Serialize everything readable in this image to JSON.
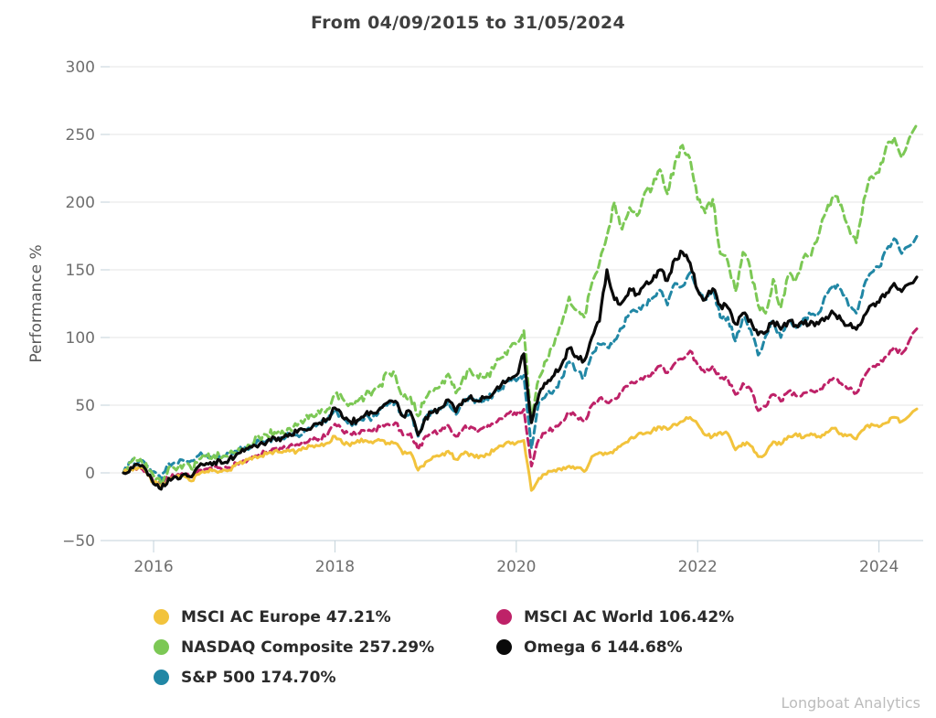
{
  "title": "From 04/09/2015 to 31/05/2024",
  "watermark": "Longboat Analytics",
  "legend": {
    "items": [
      {
        "label": "MSCI AC Europe 47.21%",
        "color": "#F2C33C"
      },
      {
        "label": "NASDAQ Composite 257.29%",
        "color": "#7CC855"
      },
      {
        "label": "S&P 500 174.70%",
        "color": "#2187A5"
      },
      {
        "label": "MSCI AC World 106.42%",
        "color": "#BE2268"
      },
      {
        "label": "Omega 6 144.68%",
        "color": "#0A0A0A"
      }
    ]
  },
  "chart_data": {
    "type": "line",
    "title": "From 04/09/2015 to 31/05/2024",
    "xlabel": "",
    "ylabel": "Performance %",
    "ylim": [
      -50,
      300
    ],
    "xlim": [
      2015.65,
      2024.45
    ],
    "y_ticks": [
      300,
      250,
      200,
      150,
      100,
      50,
      0,
      -50
    ],
    "x_ticks": [
      2016,
      2018,
      2020,
      2022,
      2024
    ],
    "grid": "horizontal",
    "legend_position": "bottom",
    "x_unit": "decimal_year_monthly_samples",
    "x": [
      2015.667,
      2015.75,
      2015.833,
      2015.917,
      2016,
      2016.083,
      2016.167,
      2016.25,
      2016.333,
      2016.417,
      2016.5,
      2016.583,
      2016.667,
      2016.75,
      2016.833,
      2016.917,
      2017,
      2017.083,
      2017.167,
      2017.25,
      2017.333,
      2017.417,
      2017.5,
      2017.583,
      2017.667,
      2017.75,
      2017.833,
      2017.917,
      2018,
      2018.083,
      2018.167,
      2018.25,
      2018.333,
      2018.417,
      2018.5,
      2018.583,
      2018.667,
      2018.75,
      2018.833,
      2018.917,
      2019,
      2019.083,
      2019.167,
      2019.25,
      2019.333,
      2019.417,
      2019.5,
      2019.583,
      2019.667,
      2019.75,
      2019.833,
      2019.917,
      2020,
      2020.083,
      2020.167,
      2020.25,
      2020.333,
      2020.417,
      2020.5,
      2020.583,
      2020.667,
      2020.75,
      2020.833,
      2020.917,
      2021,
      2021.083,
      2021.167,
      2021.25,
      2021.333,
      2021.417,
      2021.5,
      2021.583,
      2021.667,
      2021.75,
      2021.833,
      2021.917,
      2022,
      2022.083,
      2022.167,
      2022.25,
      2022.333,
      2022.417,
      2022.5,
      2022.583,
      2022.667,
      2022.75,
      2022.833,
      2022.917,
      2023,
      2023.083,
      2023.167,
      2023.25,
      2023.333,
      2023.417,
      2023.5,
      2023.583,
      2023.667,
      2023.75,
      2023.833,
      2023.917,
      2024,
      2024.083,
      2024.167,
      2024.25,
      2024.417
    ],
    "series": [
      {
        "name": "MSCI AC Europe",
        "final_pct": 47.21,
        "color": "#F2C33C",
        "dash": false,
        "jitter": 1.6,
        "values": [
          0,
          3,
          4,
          1,
          -7,
          -10,
          -4,
          -3,
          -2,
          -6,
          -1,
          1,
          2,
          1,
          2,
          7,
          8,
          10,
          12,
          14,
          16,
          15,
          16,
          16,
          18,
          20,
          20,
          22,
          27,
          22,
          20,
          24,
          24,
          22,
          24,
          22,
          22,
          14,
          15,
          2,
          8,
          12,
          13,
          16,
          10,
          14,
          14,
          11,
          14,
          16,
          20,
          23,
          22,
          24,
          -13,
          -4,
          -1,
          2,
          2,
          5,
          4,
          1,
          12,
          15,
          14,
          17,
          21,
          25,
          28,
          29,
          31,
          34,
          32,
          36,
          38,
          41,
          36,
          28,
          27,
          30,
          29,
          17,
          22,
          20,
          12,
          14,
          23,
          21,
          27,
          29,
          26,
          29,
          27,
          30,
          33,
          29,
          28,
          25,
          32,
          36,
          34,
          37,
          41,
          38,
          47.21
        ]
      },
      {
        "name": "NASDAQ Composite",
        "final_pct": 257.29,
        "color": "#7CC855",
        "dash": true,
        "jitter": 3.2,
        "values": [
          0,
          8,
          9,
          7,
          -2,
          -9,
          4,
          2,
          6,
          3,
          10,
          11,
          13,
          11,
          14,
          15,
          18,
          22,
          26,
          28,
          30,
          31,
          33,
          35,
          39,
          42,
          44,
          47,
          58,
          55,
          51,
          53,
          57,
          60,
          65,
          73,
          72,
          56,
          56,
          42,
          55,
          60,
          65,
          73,
          59,
          71,
          75,
          70,
          71,
          77,
          85,
          92,
          95,
          105,
          40,
          70,
          83,
          95,
          110,
          130,
          120,
          115,
          140,
          155,
          175,
          200,
          180,
          196,
          190,
          207,
          211,
          224,
          206,
          229,
          242,
          232,
          202,
          192,
          202,
          162,
          156,
          134,
          163,
          150,
          124,
          118,
          143,
          122,
          146,
          143,
          159,
          160,
          175,
          193,
          205,
          198,
          181,
          170,
          202,
          219,
          222,
          242,
          248,
          233,
          257.29
        ]
      },
      {
        "name": "S&P 500",
        "final_pct": 174.7,
        "color": "#2187A5",
        "dash": true,
        "jitter": 2.4,
        "values": [
          0,
          8,
          8,
          6,
          1,
          -5,
          7,
          7,
          9,
          9,
          13,
          13,
          13,
          11,
          14,
          16,
          18,
          21,
          23,
          24,
          25,
          26,
          28,
          28,
          31,
          34,
          37,
          39,
          47,
          41,
          37,
          38,
          41,
          41,
          47,
          51,
          52,
          41,
          44,
          27,
          41,
          45,
          47,
          53,
          43,
          53,
          55,
          52,
          55,
          58,
          63,
          68,
          68,
          72,
          18,
          52,
          58,
          61,
          70,
          82,
          75,
          70,
          88,
          95,
          93,
          98,
          107,
          118,
          119,
          124,
          129,
          135,
          124,
          140,
          138,
          148,
          135,
          128,
          136,
          115,
          115,
          97,
          115,
          106,
          87,
          101,
          112,
          100,
          112,
          107,
          114,
          117,
          118,
          132,
          139,
          135,
          123,
          118,
          138,
          148,
          152,
          165,
          173,
          162,
          174.7
        ]
      },
      {
        "name": "MSCI AC World",
        "final_pct": 106.42,
        "color": "#BE2268",
        "dash": true,
        "jitter": 1.8,
        "values": [
          0,
          4,
          4,
          1,
          -7,
          -9,
          -3,
          -2,
          -1,
          -3,
          2,
          3,
          4,
          3,
          4,
          7,
          9,
          12,
          14,
          16,
          18,
          18,
          20,
          21,
          22,
          24,
          26,
          28,
          36,
          31,
          29,
          30,
          31,
          31,
          34,
          36,
          37,
          28,
          29,
          17,
          27,
          30,
          31,
          35,
          27,
          33,
          34,
          31,
          33,
          36,
          40,
          44,
          43,
          47,
          5,
          25,
          30,
          33,
          38,
          45,
          41,
          38,
          50,
          55,
          52,
          55,
          60,
          66,
          68,
          71,
          74,
          79,
          74,
          81,
          84,
          90,
          80,
          74,
          79,
          70,
          69,
          58,
          66,
          62,
          46,
          49,
          58,
          53,
          60,
          57,
          59,
          61,
          60,
          65,
          70,
          66,
          62,
          59,
          70,
          78,
          80,
          86,
          93,
          88,
          106.42
        ]
      },
      {
        "name": "Omega 6",
        "final_pct": 144.68,
        "color": "#0A0A0A",
        "dash": false,
        "jitter": 2.4,
        "values": [
          0,
          4,
          6,
          2,
          -8,
          -12,
          -4,
          -3,
          -1,
          -3,
          5,
          7,
          8,
          7,
          10,
          14,
          16,
          19,
          21,
          23,
          26,
          26,
          29,
          30,
          32,
          34,
          37,
          40,
          48,
          41,
          38,
          39,
          43,
          44,
          48,
          52,
          53,
          42,
          45,
          28,
          41,
          45,
          48,
          54,
          45,
          54,
          57,
          53,
          56,
          59,
          65,
          70,
          72,
          88,
          37,
          58,
          66,
          72,
          80,
          92,
          86,
          83,
          100,
          112,
          150,
          128,
          126,
          136,
          132,
          139,
          142,
          150,
          142,
          158,
          163,
          155,
          135,
          128,
          136,
          124,
          122,
          110,
          118,
          113,
          102,
          104,
          112,
          106,
          112,
          109,
          110,
          112,
          110,
          115,
          118,
          113,
          109,
          106,
          116,
          124,
          126,
          133,
          140,
          134,
          144.68
        ]
      }
    ]
  }
}
